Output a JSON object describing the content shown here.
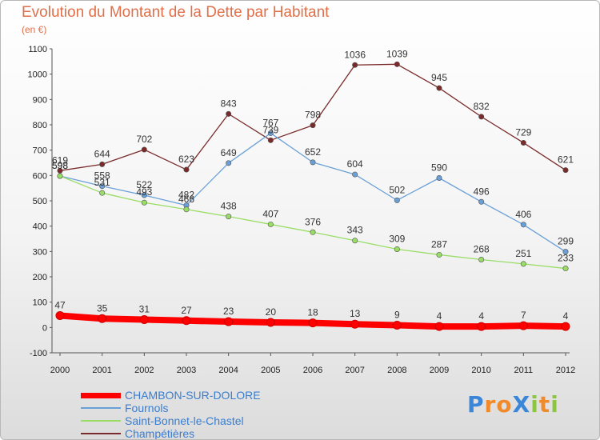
{
  "chart_data": {
    "type": "line",
    "title": "Evolution du Montant de la Dette par Habitant",
    "subtitle": "(en €)",
    "x": [
      "2000",
      "2001",
      "2002",
      "2003",
      "2004",
      "2005",
      "2006",
      "2007",
      "2008",
      "2009",
      "2010",
      "2011",
      "2012"
    ],
    "ylim": [
      -100,
      1100
    ],
    "yticks": [
      "-100",
      "0",
      "100",
      "200",
      "300",
      "400",
      "500",
      "600",
      "700",
      "800",
      "900",
      "1000",
      "1100"
    ],
    "grid": false,
    "legend_position": "bottom-left",
    "series": [
      {
        "name": "CHAMBON-SUR-DOLORE",
        "color": "#ff0000",
        "values": [
          47,
          35,
          31,
          27,
          23,
          20,
          18,
          13,
          9,
          4,
          4,
          7,
          4
        ]
      },
      {
        "name": "Fournols",
        "color": "#6aa0d8",
        "values": [
          598,
          558,
          522,
          482,
          649,
          767,
          652,
          604,
          502,
          590,
          496,
          406,
          299
        ]
      },
      {
        "name": "Saint-Bonnet-le-Chastel",
        "color": "#99dd66",
        "values": [
          598,
          531,
          493,
          466,
          438,
          407,
          376,
          343,
          309,
          287,
          268,
          251,
          233
        ]
      },
      {
        "name": "Champétières",
        "color": "#7a2a2a",
        "values": [
          619,
          644,
          702,
          623,
          843,
          739,
          798,
          1036,
          1039,
          945,
          832,
          729,
          621
        ]
      }
    ]
  },
  "logo": {
    "text": "ProXiti",
    "letters": [
      "P",
      "r",
      "o",
      "X",
      "i",
      "t",
      "i"
    ],
    "colors": [
      "#3a86d8",
      "#f08a2a",
      "#f08a2a",
      "#3a86d8",
      "#8cc63f",
      "#f08a2a",
      "#8cc63f"
    ]
  }
}
